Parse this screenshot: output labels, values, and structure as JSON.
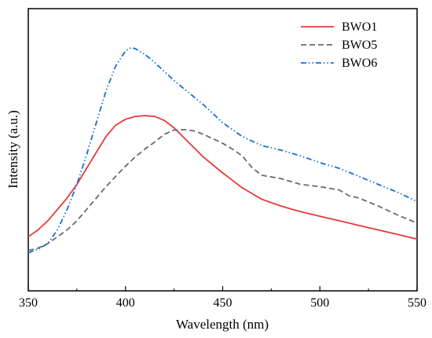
{
  "chart_data": {
    "type": "line",
    "title": "",
    "xlabel": "Wavelength (nm)",
    "ylabel": "Intensity (a.u.)",
    "xlim": [
      350,
      550
    ],
    "ylim": [
      0,
      100
    ],
    "xticks": [
      350,
      400,
      450,
      500,
      550
    ],
    "xtick_labels": [
      "350",
      "400",
      "450",
      "500",
      "550"
    ],
    "y_tick_labels_shown": false,
    "grid": false,
    "legend_position": "top-right",
    "series": [
      {
        "name": "BWO1",
        "color": "#e8393a",
        "dash": "solid",
        "x": [
          350,
          355,
          360,
          365,
          370,
          375,
          380,
          385,
          390,
          395,
          400,
          405,
          410,
          415,
          420,
          425,
          430,
          440,
          450,
          460,
          470,
          480,
          490,
          500,
          510,
          520,
          530,
          540,
          550
        ],
        "y": [
          12,
          15,
          19,
          24,
          29,
          35,
          42,
          49,
          56,
          61,
          63.5,
          64.8,
          65.1,
          64.8,
          63,
          59.8,
          55.5,
          47,
          40,
          33.5,
          28.5,
          25.5,
          23,
          21,
          19,
          17,
          15,
          13,
          11
        ]
      },
      {
        "name": "BWO5",
        "color": "#6b6b6b",
        "dash": "dashed",
        "x": [
          350,
          355,
          360,
          365,
          370,
          375,
          380,
          385,
          390,
          395,
          400,
          405,
          410,
          415,
          420,
          425,
          430,
          435,
          440,
          445,
          450,
          455,
          460,
          465,
          470,
          480,
          490,
          500,
          510,
          515,
          520,
          530,
          540,
          550
        ],
        "y": [
          6,
          7,
          9,
          12,
          15,
          19,
          24,
          29,
          34,
          38.5,
          43,
          47,
          50.5,
          53.5,
          57,
          58.8,
          59,
          58.5,
          57,
          55,
          53,
          50.5,
          47.5,
          42.5,
          39,
          37.5,
          35,
          34,
          32.5,
          30,
          29,
          25.5,
          21.5,
          18
        ]
      },
      {
        "name": "BWO6",
        "color": "#1a6fd4",
        "dash": "dashdotdot",
        "x": [
          350,
          355,
          360,
          365,
          370,
          375,
          380,
          385,
          390,
          395,
          400,
          403,
          405,
          410,
          415,
          420,
          425,
          430,
          440,
          450,
          460,
          470,
          480,
          490,
          500,
          510,
          520,
          530,
          540,
          550
        ],
        "y": [
          5,
          6.5,
          9,
          15,
          24,
          35,
          48,
          62,
          76,
          87,
          93.5,
          95,
          94.5,
          92,
          88.5,
          84.5,
          80.5,
          77,
          70,
          62,
          56,
          52,
          50,
          47.5,
          44.5,
          42,
          38.5,
          35,
          31.5,
          27.5
        ]
      }
    ]
  }
}
